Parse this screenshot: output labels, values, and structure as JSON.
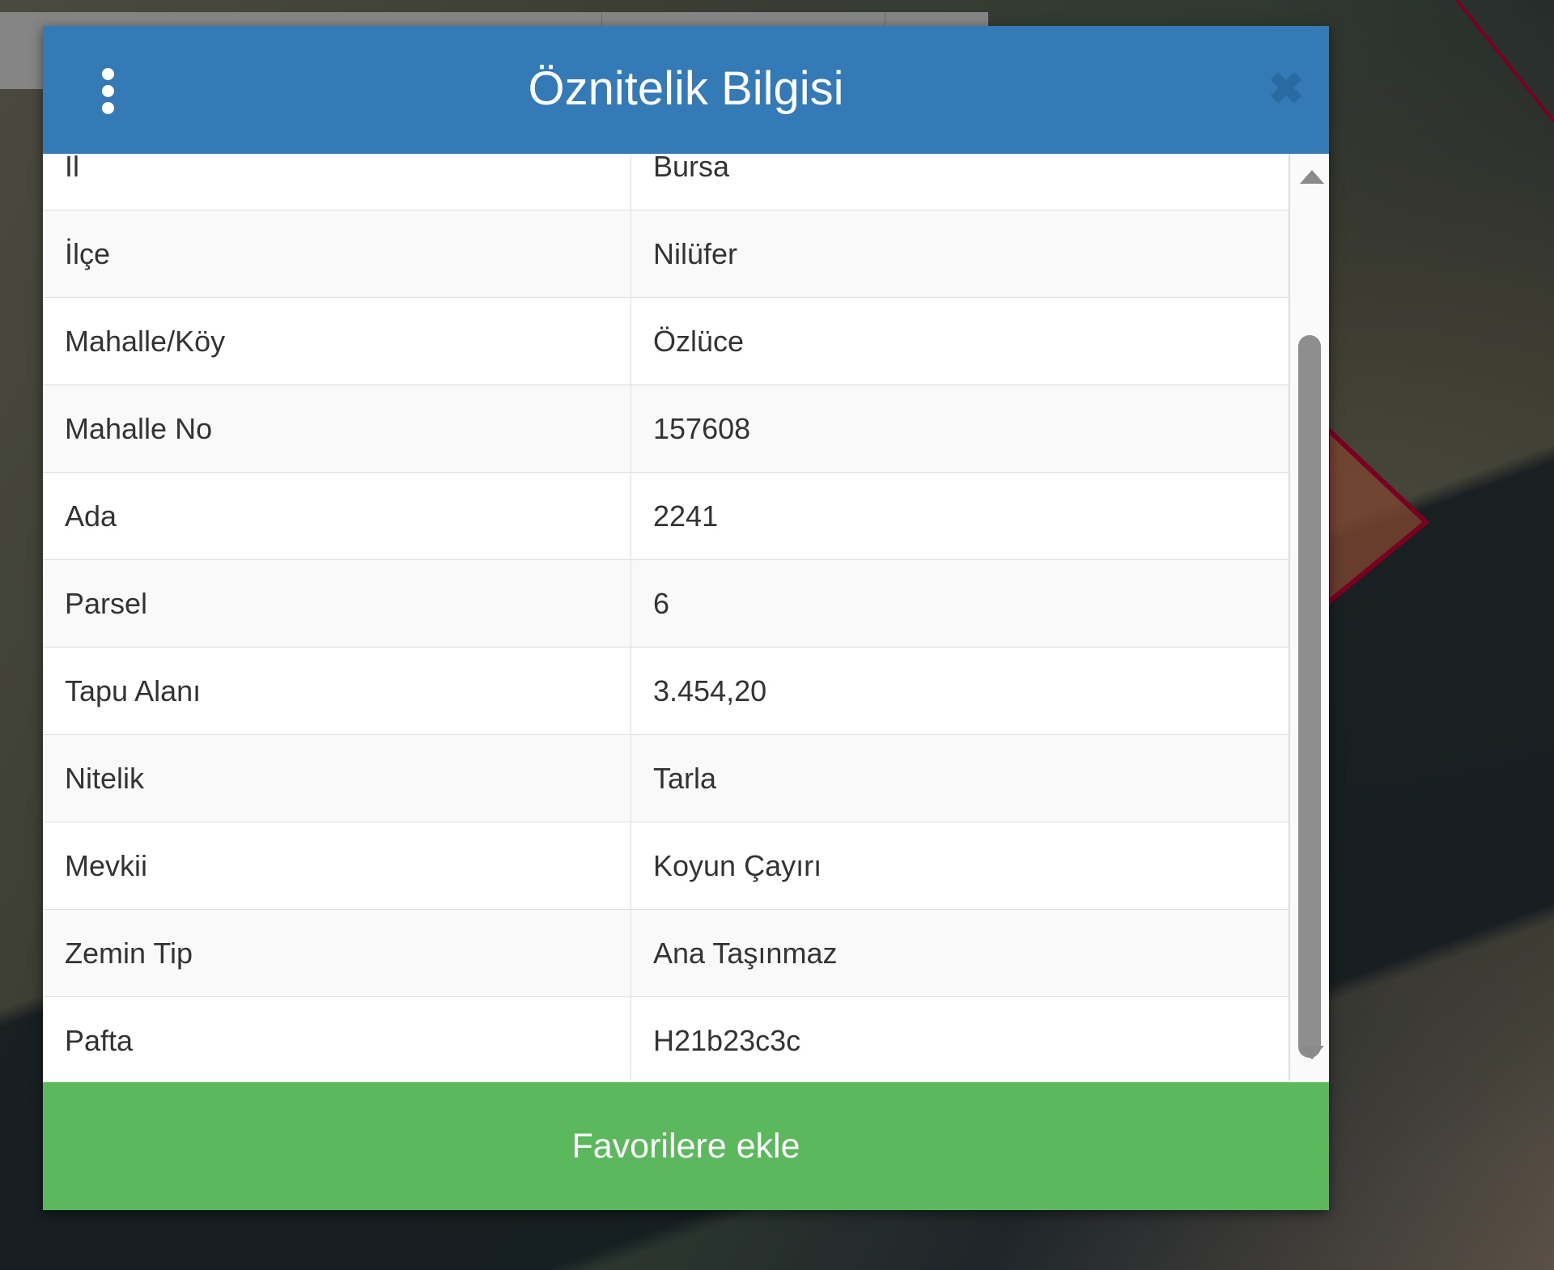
{
  "dialog": {
    "title": "Öznitelik Bilgisi",
    "menu_icon": "vertical-ellipsis-icon",
    "close_icon": "close-x-icon",
    "close_glyph": "✖",
    "rows": [
      {
        "label": "İl",
        "value": "Bursa"
      },
      {
        "label": "İlçe",
        "value": "Nilüfer"
      },
      {
        "label": "Mahalle/Köy",
        "value": "Özlüce"
      },
      {
        "label": "Mahalle No",
        "value": "157608"
      },
      {
        "label": "Ada",
        "value": "2241"
      },
      {
        "label": "Parsel",
        "value": "6"
      },
      {
        "label": "Tapu Alanı",
        "value": "3.454,20"
      },
      {
        "label": "Nitelik",
        "value": "Tarla"
      },
      {
        "label": "Mevkii",
        "value": "Koyun Çayırı"
      },
      {
        "label": "Zemin Tip",
        "value": "Ana Taşınmaz"
      },
      {
        "label": "Pafta",
        "value": "H21b23c3c"
      }
    ],
    "add_favorites_label": "Favorilere ekle"
  },
  "colors": {
    "header": "#337ab7",
    "button": "#5cb85c",
    "parcel_outline": "#7a0020"
  }
}
